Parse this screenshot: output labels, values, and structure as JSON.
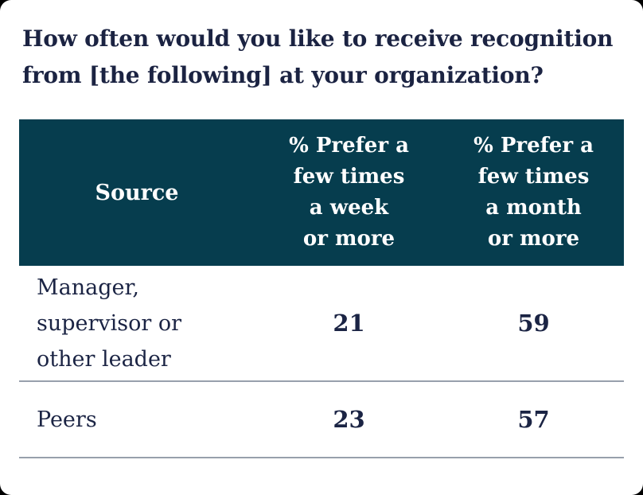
{
  "title": {
    "lines": [
      "How often would you like to receive recognition",
      "from [the following] at your organization?"
    ],
    "full_text": "How often would you like to receive recognition from [the following] at your organization?"
  },
  "table": {
    "header": {
      "source_label": "Source",
      "col_week_lines": [
        "% Prefer a",
        "few times",
        "a week",
        "or more"
      ],
      "col_month_lines": [
        "% Prefer a",
        "few times",
        "a month",
        "or more"
      ]
    },
    "rows": [
      {
        "source_lines": [
          "Manager,",
          "supervisor or",
          "other leader"
        ],
        "week_value": "21",
        "month_value": "59"
      },
      {
        "source_lines": [
          "Peers"
        ],
        "week_value": "23",
        "month_value": "57"
      }
    ]
  },
  "colors": {
    "header_bg": "#063D4E",
    "title_navy": "#1B2342",
    "body_navy": "#1B2444",
    "divider_gray": "#98A0AC",
    "card_bg": "#FFFFFF",
    "outer_bg": "#000000"
  },
  "chart_data": {
    "type": "table",
    "title": "How often would you like to receive recognition from [the following] at your organization?",
    "columns": [
      "Source",
      "% Prefer a few times a week or more",
      "% Prefer a few times a month or more"
    ],
    "rows": [
      {
        "source": "Manager, supervisor or other leader",
        "pct_few_times_week_or_more": 21,
        "pct_few_times_month_or_more": 59
      },
      {
        "source": "Peers",
        "pct_few_times_week_or_more": 23,
        "pct_few_times_month_or_more": 57
      }
    ],
    "layout": {
      "header_style": "dark-teal",
      "value_alignment": "center",
      "grid": "horizontal-rules-only"
    }
  }
}
